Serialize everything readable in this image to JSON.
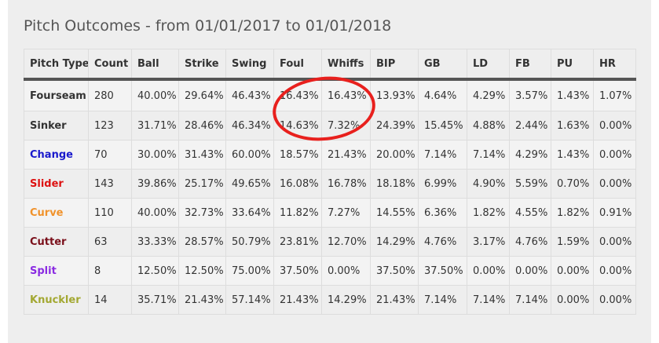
{
  "title": "Pitch Outcomes - from 01/01/2017 to 01/01/2018",
  "columns": [
    "Pitch Type",
    "Count",
    "Ball",
    "Strike",
    "Swing",
    "Foul",
    "Whiffs",
    "BIP",
    "GB",
    "LD",
    "FB",
    "PU",
    "HR"
  ],
  "rows": [
    {
      "pitch": "Fourseam",
      "color": "#333333",
      "values": [
        "280",
        "40.00%",
        "29.64%",
        "46.43%",
        "16.43%",
        "16.43%",
        "13.93%",
        "4.64%",
        "4.29%",
        "3.57%",
        "1.43%",
        "1.07%"
      ]
    },
    {
      "pitch": "Sinker",
      "color": "#333333",
      "values": [
        "123",
        "31.71%",
        "28.46%",
        "46.34%",
        "14.63%",
        "7.32%",
        "24.39%",
        "15.45%",
        "4.88%",
        "2.44%",
        "1.63%",
        "0.00%"
      ]
    },
    {
      "pitch": "Change",
      "color": "#1a1acc",
      "values": [
        "70",
        "30.00%",
        "31.43%",
        "60.00%",
        "18.57%",
        "21.43%",
        "20.00%",
        "7.14%",
        "7.14%",
        "4.29%",
        "1.43%",
        "0.00%"
      ]
    },
    {
      "pitch": "Slider",
      "color": "#dd1111",
      "values": [
        "143",
        "39.86%",
        "25.17%",
        "49.65%",
        "16.08%",
        "16.78%",
        "18.18%",
        "6.99%",
        "4.90%",
        "5.59%",
        "0.70%",
        "0.00%"
      ]
    },
    {
      "pitch": "Curve",
      "color": "#f0922b",
      "values": [
        "110",
        "40.00%",
        "32.73%",
        "33.64%",
        "11.82%",
        "7.27%",
        "14.55%",
        "6.36%",
        "1.82%",
        "4.55%",
        "1.82%",
        "0.91%"
      ]
    },
    {
      "pitch": "Cutter",
      "color": "#7a0f1a",
      "values": [
        "63",
        "33.33%",
        "28.57%",
        "50.79%",
        "23.81%",
        "12.70%",
        "14.29%",
        "4.76%",
        "3.17%",
        "4.76%",
        "1.59%",
        "0.00%"
      ]
    },
    {
      "pitch": "Split",
      "color": "#8a2be2",
      "values": [
        "8",
        "12.50%",
        "12.50%",
        "75.00%",
        "37.50%",
        "0.00%",
        "37.50%",
        "37.50%",
        "0.00%",
        "0.00%",
        "0.00%",
        "0.00%"
      ]
    },
    {
      "pitch": "Knuckler",
      "color": "#a3a832",
      "values": [
        "14",
        "35.71%",
        "21.43%",
        "57.14%",
        "21.43%",
        "14.29%",
        "21.43%",
        "7.14%",
        "7.14%",
        "7.14%",
        "0.00%",
        "0.00%"
      ]
    }
  ],
  "annotation": {
    "color": "#e8201d"
  }
}
